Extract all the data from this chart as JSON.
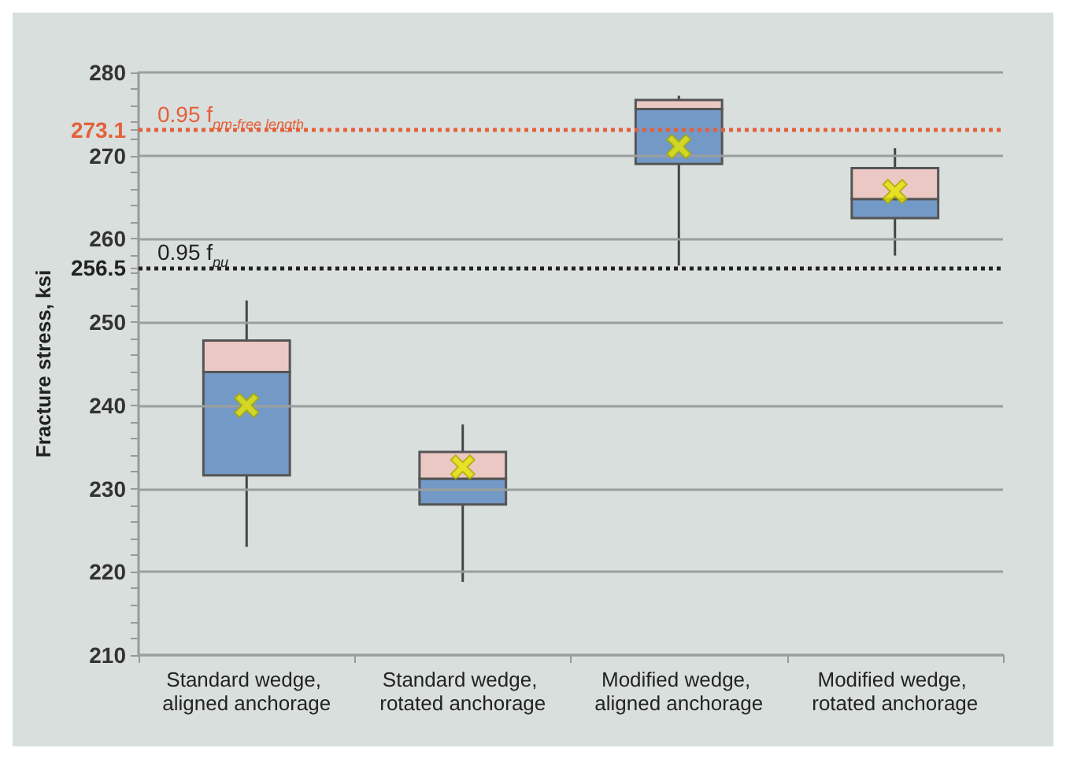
{
  "chart_data": {
    "type": "box",
    "ylabel": "Fracture stress, ksi",
    "categories": [
      "Standard wedge, aligned anchorage",
      "Standard wedge, rotated anchorage",
      "Modified wedge, aligned anchorage",
      "Modified wedge, rotated anchorage"
    ],
    "series": [
      {
        "color": "#7399c6",
        "boxes": [
          {
            "low": 223,
            "q1": 231.6,
            "median": 244,
            "q3": 247.8,
            "high": 252.6,
            "mean": 240
          },
          {
            "low": 218.8,
            "q1": 228.1,
            "median": 231.2,
            "q3": 234.4,
            "high": 237.7,
            "mean": 232.6
          },
          {
            "low": 256.8,
            "q1": 269,
            "median": 275.6,
            "q3": 276.7,
            "high": 277.2,
            "mean": 271.1
          },
          {
            "low": 258,
            "q1": 262.5,
            "median": 264.8,
            "q3": 268.5,
            "high": 270.9,
            "mean": 265.7
          }
        ]
      }
    ],
    "marker": "cross",
    "ylim": [
      210,
      280
    ],
    "yticks": [
      210,
      {
        "value": 212,
        "label": null
      },
      {
        "value": 214,
        "label": null
      },
      {
        "value": 216,
        "label": null
      },
      {
        "value": 218,
        "label": null
      },
      220,
      {
        "value": 222,
        "label": null
      },
      {
        "value": 224,
        "label": null
      },
      {
        "value": 226,
        "label": null
      },
      {
        "value": 228,
        "label": null
      },
      230,
      {
        "value": 232,
        "label": null
      },
      {
        "value": 234,
        "label": null
      },
      {
        "value": 236,
        "label": null
      },
      {
        "value": 238,
        "label": null
      },
      240,
      {
        "value": 242,
        "label": null
      },
      {
        "value": 244,
        "label": null
      },
      {
        "value": 246,
        "label": null
      },
      {
        "value": 248,
        "label": null
      },
      250,
      {
        "value": 252,
        "label": null
      },
      {
        "value": 254,
        "label": null
      },
      {
        "value": 256,
        "label": null
      },
      256.5,
      {
        "value": 258,
        "label": null
      },
      260,
      {
        "value": 262,
        "label": null
      },
      {
        "value": 264,
        "label": null
      },
      {
        "value": 266,
        "label": null
      },
      {
        "value": 268,
        "label": null
      },
      270,
      {
        "value": 272,
        "label": null
      },
      273.1,
      {
        "value": 274,
        "label": null
      },
      {
        "value": 276,
        "label": null
      },
      {
        "value": 278,
        "label": null
      },
      280
    ],
    "grid": "y",
    "ref_lines": [
      {
        "axis": "y",
        "value": 273.1,
        "label": "0.95 f$_{pm-free length}$",
        "color": "#e4603a",
        "line_style": "dotted"
      },
      {
        "axis": "y",
        "value": 256.5,
        "label": "0.95 f$_{pu}$",
        "color": "#222222",
        "line_style": "dotted"
      }
    ]
  }
}
